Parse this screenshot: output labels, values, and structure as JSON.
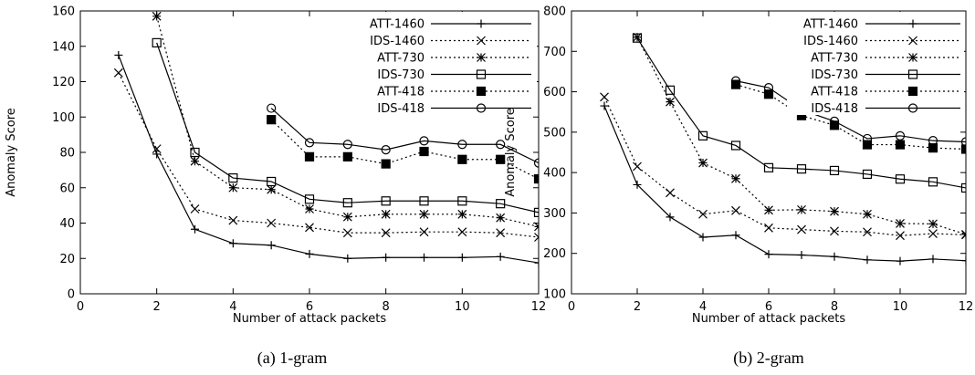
{
  "chart_data": [
    {
      "type": "line",
      "caption": "(a) 1-gram",
      "xlabel": "Number of attack packets",
      "ylabel": "Anomaly Score",
      "xlim": [
        0,
        12
      ],
      "ylim": [
        0,
        160
      ],
      "xticks": [
        0,
        2,
        4,
        6,
        8,
        10,
        12
      ],
      "yticks": [
        0,
        20,
        40,
        60,
        80,
        100,
        120,
        140,
        160
      ],
      "grid": false,
      "legend": "top-right",
      "series": [
        {
          "name": "ATT-1460",
          "marker": "plus",
          "dash": "solid",
          "x": [
            1,
            2,
            3,
            4,
            5,
            6,
            7,
            8,
            9,
            10,
            11,
            12
          ],
          "y": [
            135,
            79,
            36.5,
            28.5,
            27.5,
            22.5,
            20,
            20.5,
            20.5,
            20.5,
            21,
            17.5
          ]
        },
        {
          "name": "IDS-1460",
          "marker": "cross",
          "dash": "dotted",
          "x": [
            1,
            2,
            3,
            4,
            5,
            6,
            7,
            8,
            9,
            10,
            11,
            12
          ],
          "y": [
            125,
            82,
            48,
            41.5,
            40,
            37.5,
            34.5,
            34.5,
            35,
            35,
            34.5,
            32
          ]
        },
        {
          "name": "ATT-730",
          "marker": "asterisk",
          "dash": "dotted",
          "x": [
            2,
            3,
            4,
            5,
            6,
            7,
            8,
            9,
            10,
            11,
            12
          ],
          "y": [
            157,
            75,
            60,
            59,
            48,
            43.5,
            45,
            45,
            45,
            43,
            38
          ]
        },
        {
          "name": "IDS-730",
          "marker": "square-open",
          "dash": "solid",
          "x": [
            2,
            3,
            4,
            5,
            6,
            7,
            8,
            9,
            10,
            11,
            12
          ],
          "y": [
            142,
            80,
            65.5,
            63.5,
            53.5,
            51.5,
            52.5,
            52.5,
            52.5,
            51,
            46
          ]
        },
        {
          "name": "ATT-418",
          "marker": "square-filled",
          "dash": "dotted",
          "x": [
            5,
            6,
            7,
            8,
            9,
            10,
            11,
            12
          ],
          "y": [
            98.5,
            77.5,
            77.5,
            73.5,
            80.5,
            76,
            76,
            65
          ]
        },
        {
          "name": "IDS-418",
          "marker": "circle-open",
          "dash": "solid",
          "x": [
            5,
            6,
            7,
            8,
            9,
            10,
            11,
            12
          ],
          "y": [
            105,
            85.5,
            84.5,
            81.5,
            86.5,
            84.5,
            84.5,
            74
          ]
        }
      ]
    },
    {
      "type": "line",
      "caption": "(b) 2-gram",
      "xlabel": "Number of attack packets",
      "ylabel": "Anomaly Score",
      "xlim": [
        0,
        12
      ],
      "ylim": [
        100,
        800
      ],
      "xticks": [
        0,
        2,
        4,
        6,
        8,
        10,
        12
      ],
      "yticks": [
        100,
        200,
        300,
        400,
        500,
        600,
        700,
        800
      ],
      "grid": false,
      "legend": "top-right",
      "series": [
        {
          "name": "ATT-1460",
          "marker": "plus",
          "dash": "solid",
          "x": [
            1,
            2,
            3,
            4,
            5,
            6,
            7,
            8,
            9,
            10,
            11,
            12
          ],
          "y": [
            565,
            370,
            290,
            240,
            245,
            198,
            196,
            192,
            184,
            181,
            186,
            182
          ]
        },
        {
          "name": "IDS-1460",
          "marker": "cross",
          "dash": "dotted",
          "x": [
            1,
            2,
            3,
            4,
            5,
            6,
            7,
            8,
            9,
            10,
            11,
            12
          ],
          "y": [
            587,
            415,
            350,
            297,
            306,
            263,
            259,
            255,
            253,
            244,
            249,
            246
          ]
        },
        {
          "name": "ATT-730",
          "marker": "asterisk",
          "dash": "dotted",
          "x": [
            2,
            3,
            4,
            5,
            6,
            7,
            8,
            9,
            10,
            11,
            12
          ],
          "y": [
            735,
            575,
            424,
            385,
            307,
            308,
            304,
            297,
            274,
            273,
            247
          ]
        },
        {
          "name": "IDS-730",
          "marker": "square-open",
          "dash": "solid",
          "x": [
            2,
            3,
            4,
            5,
            6,
            7,
            8,
            9,
            10,
            11,
            12
          ],
          "y": [
            733,
            604,
            491,
            467,
            412,
            409,
            405,
            396,
            384,
            377,
            362
          ]
        },
        {
          "name": "ATT-418",
          "marker": "square-filled",
          "dash": "dotted",
          "x": [
            5,
            6,
            7,
            8,
            9,
            10,
            11,
            12
          ],
          "y": [
            618,
            594,
            541,
            517,
            469,
            469,
            461,
            458
          ]
        },
        {
          "name": "IDS-418",
          "marker": "circle-open",
          "dash": "solid",
          "x": [
            5,
            6,
            7,
            8,
            9,
            10,
            11,
            12
          ],
          "y": [
            627,
            610,
            555,
            527,
            484,
            491,
            479,
            476
          ]
        }
      ]
    }
  ]
}
